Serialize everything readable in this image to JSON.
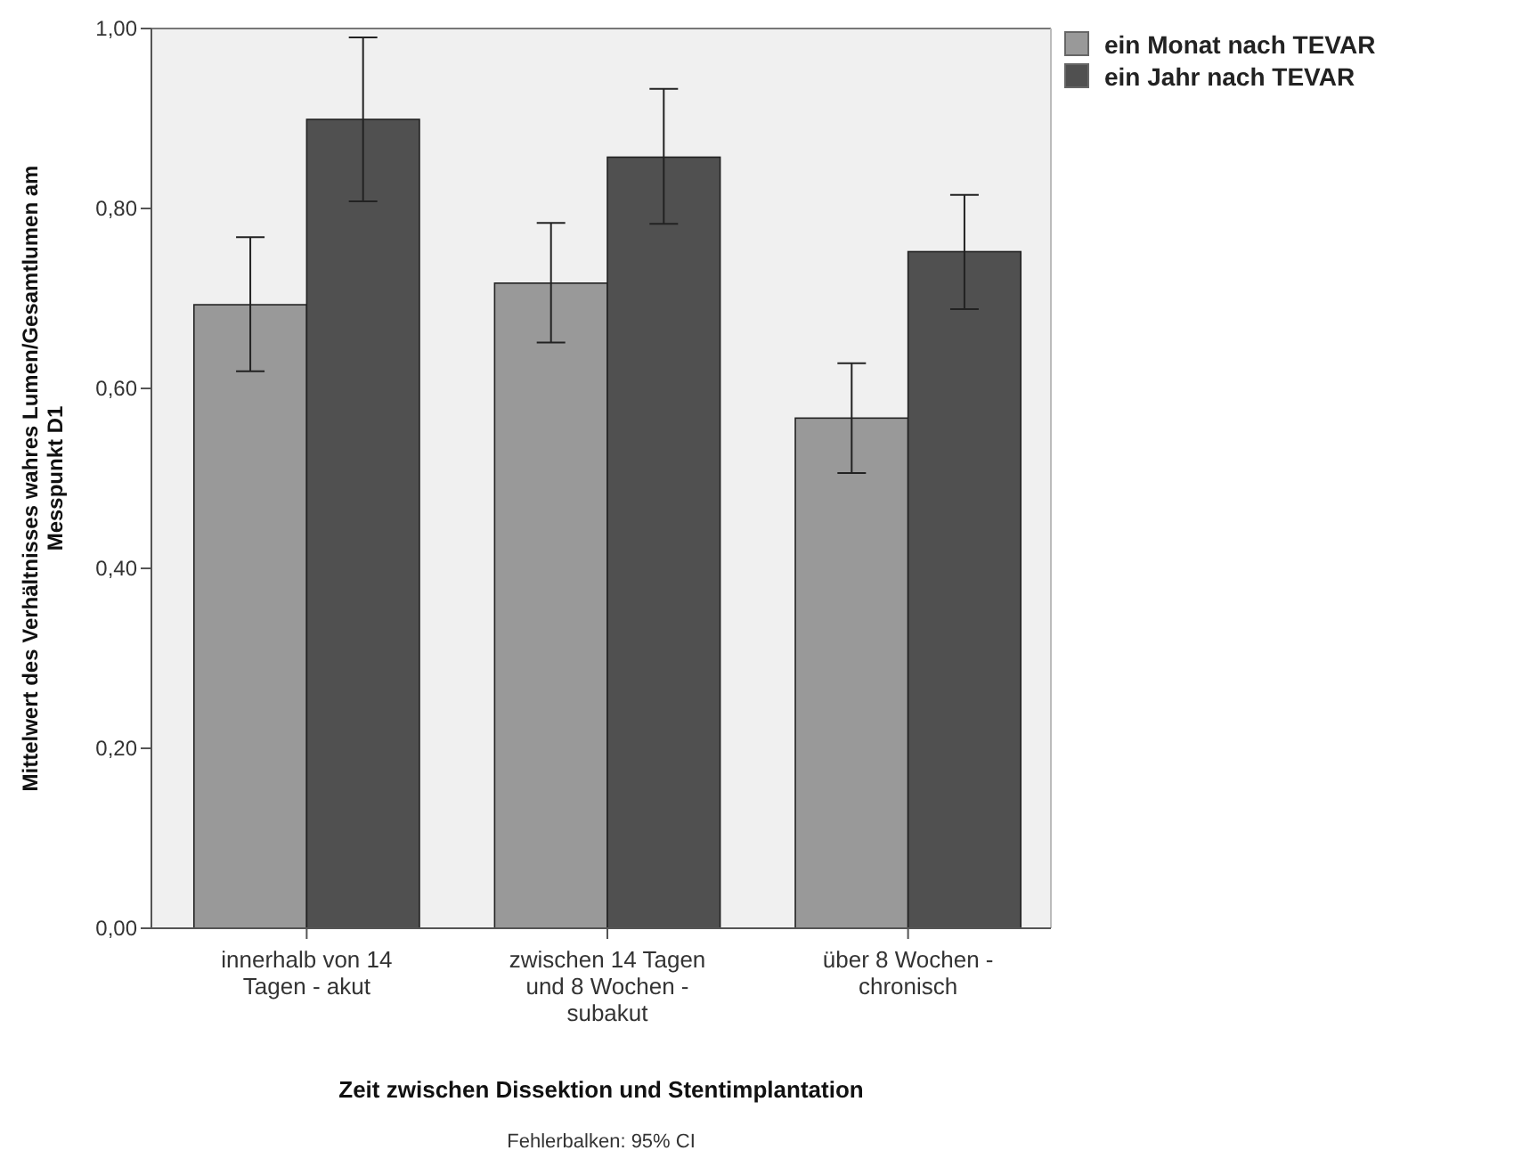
{
  "chart_data": {
    "type": "bar",
    "xlabel": "Zeit zwischen Dissektion und Stentimplantation",
    "ylabel": "Mittelwert des Verhältnisses wahres Lumen/Gesamtlumen am Messpunkt D1",
    "categories": [
      "innerhalb von 14 Tagen - akut",
      "zwischen 14 Tagen und 8 Wochen - subakut",
      "über 8 Wochen - chronisch"
    ],
    "series": [
      {
        "name": "ein Monat nach TEVAR",
        "color": "#999999",
        "values": [
          0.693,
          0.717,
          0.567
        ],
        "errors": [
          [
            0.619,
            0.768
          ],
          [
            0.651,
            0.784
          ],
          [
            0.506,
            0.628
          ]
        ]
      },
      {
        "name": "ein Jahr nach TEVAR",
        "color": "#505050",
        "values": [
          0.899,
          0.857,
          0.752
        ],
        "errors": [
          [
            0.808,
            0.99
          ],
          [
            0.783,
            0.933
          ],
          [
            0.688,
            0.815
          ]
        ]
      }
    ],
    "ylim": [
      0,
      1
    ],
    "yticks": [
      {
        "value": 0,
        "label": "0,00"
      },
      {
        "value": 0.2,
        "label": "0,20"
      },
      {
        "value": 0.4,
        "label": "0,40"
      },
      {
        "value": 0.6,
        "label": "0,60"
      },
      {
        "value": 0.8,
        "label": "0,80"
      },
      {
        "value": 1,
        "label": "1,00"
      }
    ],
    "grid": false,
    "legend": "top right",
    "annotations": [
      "Fehlerbalken: 95% CI"
    ]
  }
}
